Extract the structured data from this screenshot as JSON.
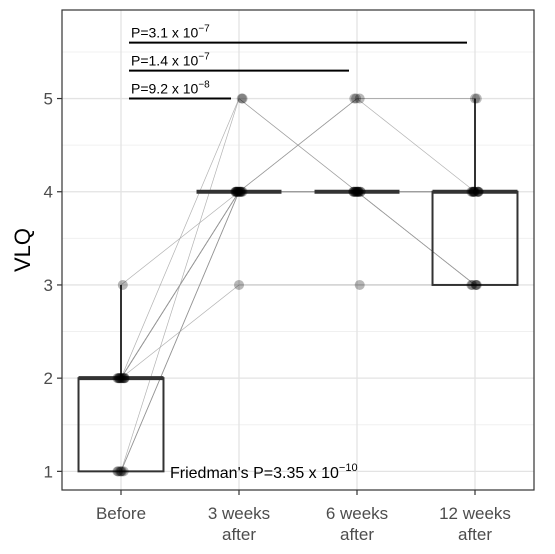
{
  "chart_data": {
    "type": "box-paired",
    "ylabel": "VLQ",
    "ylim": [
      0.8,
      5.95
    ],
    "y_ticks": [
      1,
      2,
      3,
      4,
      5
    ],
    "categories": [
      {
        "line1": "Before",
        "line2": ""
      },
      {
        "line1": "3 weeks",
        "line2": "after"
      },
      {
        "line1": "6 weeks",
        "line2": "after"
      },
      {
        "line1": "12 weeks",
        "line2": "after"
      }
    ],
    "boxes": [
      {
        "q1": 1,
        "median": 2,
        "q3": 2,
        "whisker_low": 1,
        "whisker_high": 3
      },
      {
        "q1": 4,
        "median": 4,
        "q3": 4,
        "whisker_low": 4,
        "whisker_high": 4
      },
      {
        "q1": 4,
        "median": 4,
        "q3": 4,
        "whisker_low": 4,
        "whisker_high": 4
      },
      {
        "q1": 3,
        "median": 4,
        "q3": 4,
        "whisker_low": 3,
        "whisker_high": 5
      }
    ],
    "subjects": [
      [
        1,
        4,
        4,
        4
      ],
      [
        1,
        4,
        4,
        4
      ],
      [
        1,
        4,
        4,
        3
      ],
      [
        1,
        4,
        4,
        4
      ],
      [
        1,
        4,
        5,
        4
      ],
      [
        2,
        4,
        4,
        4
      ],
      [
        2,
        4,
        4,
        3
      ],
      [
        2,
        4,
        5,
        5
      ],
      [
        2,
        4,
        4,
        4
      ],
      [
        2,
        4,
        4,
        3
      ],
      [
        2,
        4,
        4,
        4
      ],
      [
        2,
        5,
        4,
        3
      ],
      [
        2,
        4,
        4,
        4
      ],
      [
        2,
        3,
        3,
        3
      ],
      [
        2,
        4,
        4,
        4
      ],
      [
        3,
        4,
        5,
        5
      ],
      [
        1,
        5,
        4,
        4
      ],
      [
        2,
        4,
        4,
        4
      ]
    ],
    "comparisons": [
      {
        "from": 0,
        "to": 1,
        "y": 5.0,
        "label_prefix": "P=9.2 x 10",
        "label_exp": "−8"
      },
      {
        "from": 0,
        "to": 2,
        "y": 5.3,
        "label_prefix": "P=1.4 x 10",
        "label_exp": "−7"
      },
      {
        "from": 0,
        "to": 3,
        "y": 5.6,
        "label_prefix": "P=3.1 x 10",
        "label_exp": "−7"
      }
    ],
    "friedman": {
      "prefix": "Friedman's  P=3.35 x 10",
      "exp": "−10"
    },
    "grid": true
  }
}
